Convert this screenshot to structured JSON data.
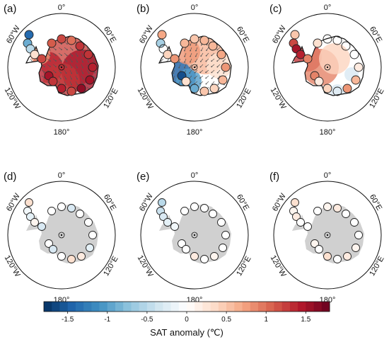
{
  "chart_data": {
    "type": "polar-map-panels",
    "panels": [
      {
        "label": "(a)",
        "field": "warm-east",
        "arrows": true,
        "stations": [
          -1.4,
          -0.9,
          -0.5,
          0.3,
          1.2,
          1.1,
          1.2,
          1.0,
          1.3,
          1.3,
          1.4,
          1.5,
          1.6,
          1.5,
          1.4,
          1.3,
          1.2
        ]
      },
      {
        "label": "(b)",
        "field": "cold-ross",
        "arrows": true,
        "stations": [
          0.7,
          -0.6,
          0.0,
          0.4,
          0.8,
          0.6,
          0.5,
          0.6,
          0.6,
          0.7,
          0.8,
          0.6,
          0.4,
          -1.6,
          -0.9,
          0.3,
          0.5
        ]
      },
      {
        "label": "(c)",
        "field": "warm-peninsula",
        "arrows": false,
        "stations": [
          0.5,
          1.2,
          1.5,
          1.4,
          0.9,
          0.3,
          0.1,
          0.0,
          0.0,
          0.1,
          0.2,
          0.6,
          0.8,
          0.9,
          0.4,
          0.2,
          0.0
        ]
      },
      {
        "label": "(d)",
        "field": "none",
        "arrows": false,
        "stations": [
          0.3,
          -0.1,
          -0.2,
          0.1,
          -0.3,
          0.0,
          0.0,
          -0.3,
          0.0,
          0.0,
          0.0,
          -0.2,
          0.2,
          0.0,
          0.0,
          -0.3,
          0.3
        ]
      },
      {
        "label": "(e)",
        "field": "none",
        "arrows": false,
        "stations": [
          -0.5,
          -0.4,
          -0.3,
          -0.2,
          -0.1,
          0.0,
          0.0,
          0.0,
          0.0,
          0.0,
          0.0,
          0.0,
          0.1,
          0.0,
          0.2,
          0.0,
          0.0
        ]
      },
      {
        "label": "(f)",
        "field": "none",
        "arrows": false,
        "stations": [
          0.3,
          0.1,
          0.2,
          0.0,
          0.0,
          0.0,
          0.1,
          0.2,
          0.0,
          0.0,
          0.0,
          0.1,
          0.2,
          0.1,
          0.3,
          0.0,
          0.0
        ]
      }
    ],
    "longitude_labels": [
      "0°",
      "60°E",
      "120°E",
      "180°",
      "120°W",
      "60°W"
    ],
    "colorbar": {
      "label": "SAT anomaly (℃)",
      "range": [
        -1.8,
        1.8
      ],
      "ticks": [
        -1.5,
        -1,
        -0.5,
        0,
        0.5,
        1,
        1.5
      ],
      "tick_labels": [
        "-1.5",
        "-1",
        "-0.5",
        "0",
        "0.5",
        "1",
        "1.5"
      ],
      "colormap": [
        "#053061",
        "#2166ac",
        "#4393c3",
        "#92c5de",
        "#d1e5f0",
        "#ffffff",
        "#fddbc7",
        "#f4a582",
        "#d6604d",
        "#b2182b",
        "#67001f"
      ]
    },
    "land_color": "#d0d0d0"
  }
}
